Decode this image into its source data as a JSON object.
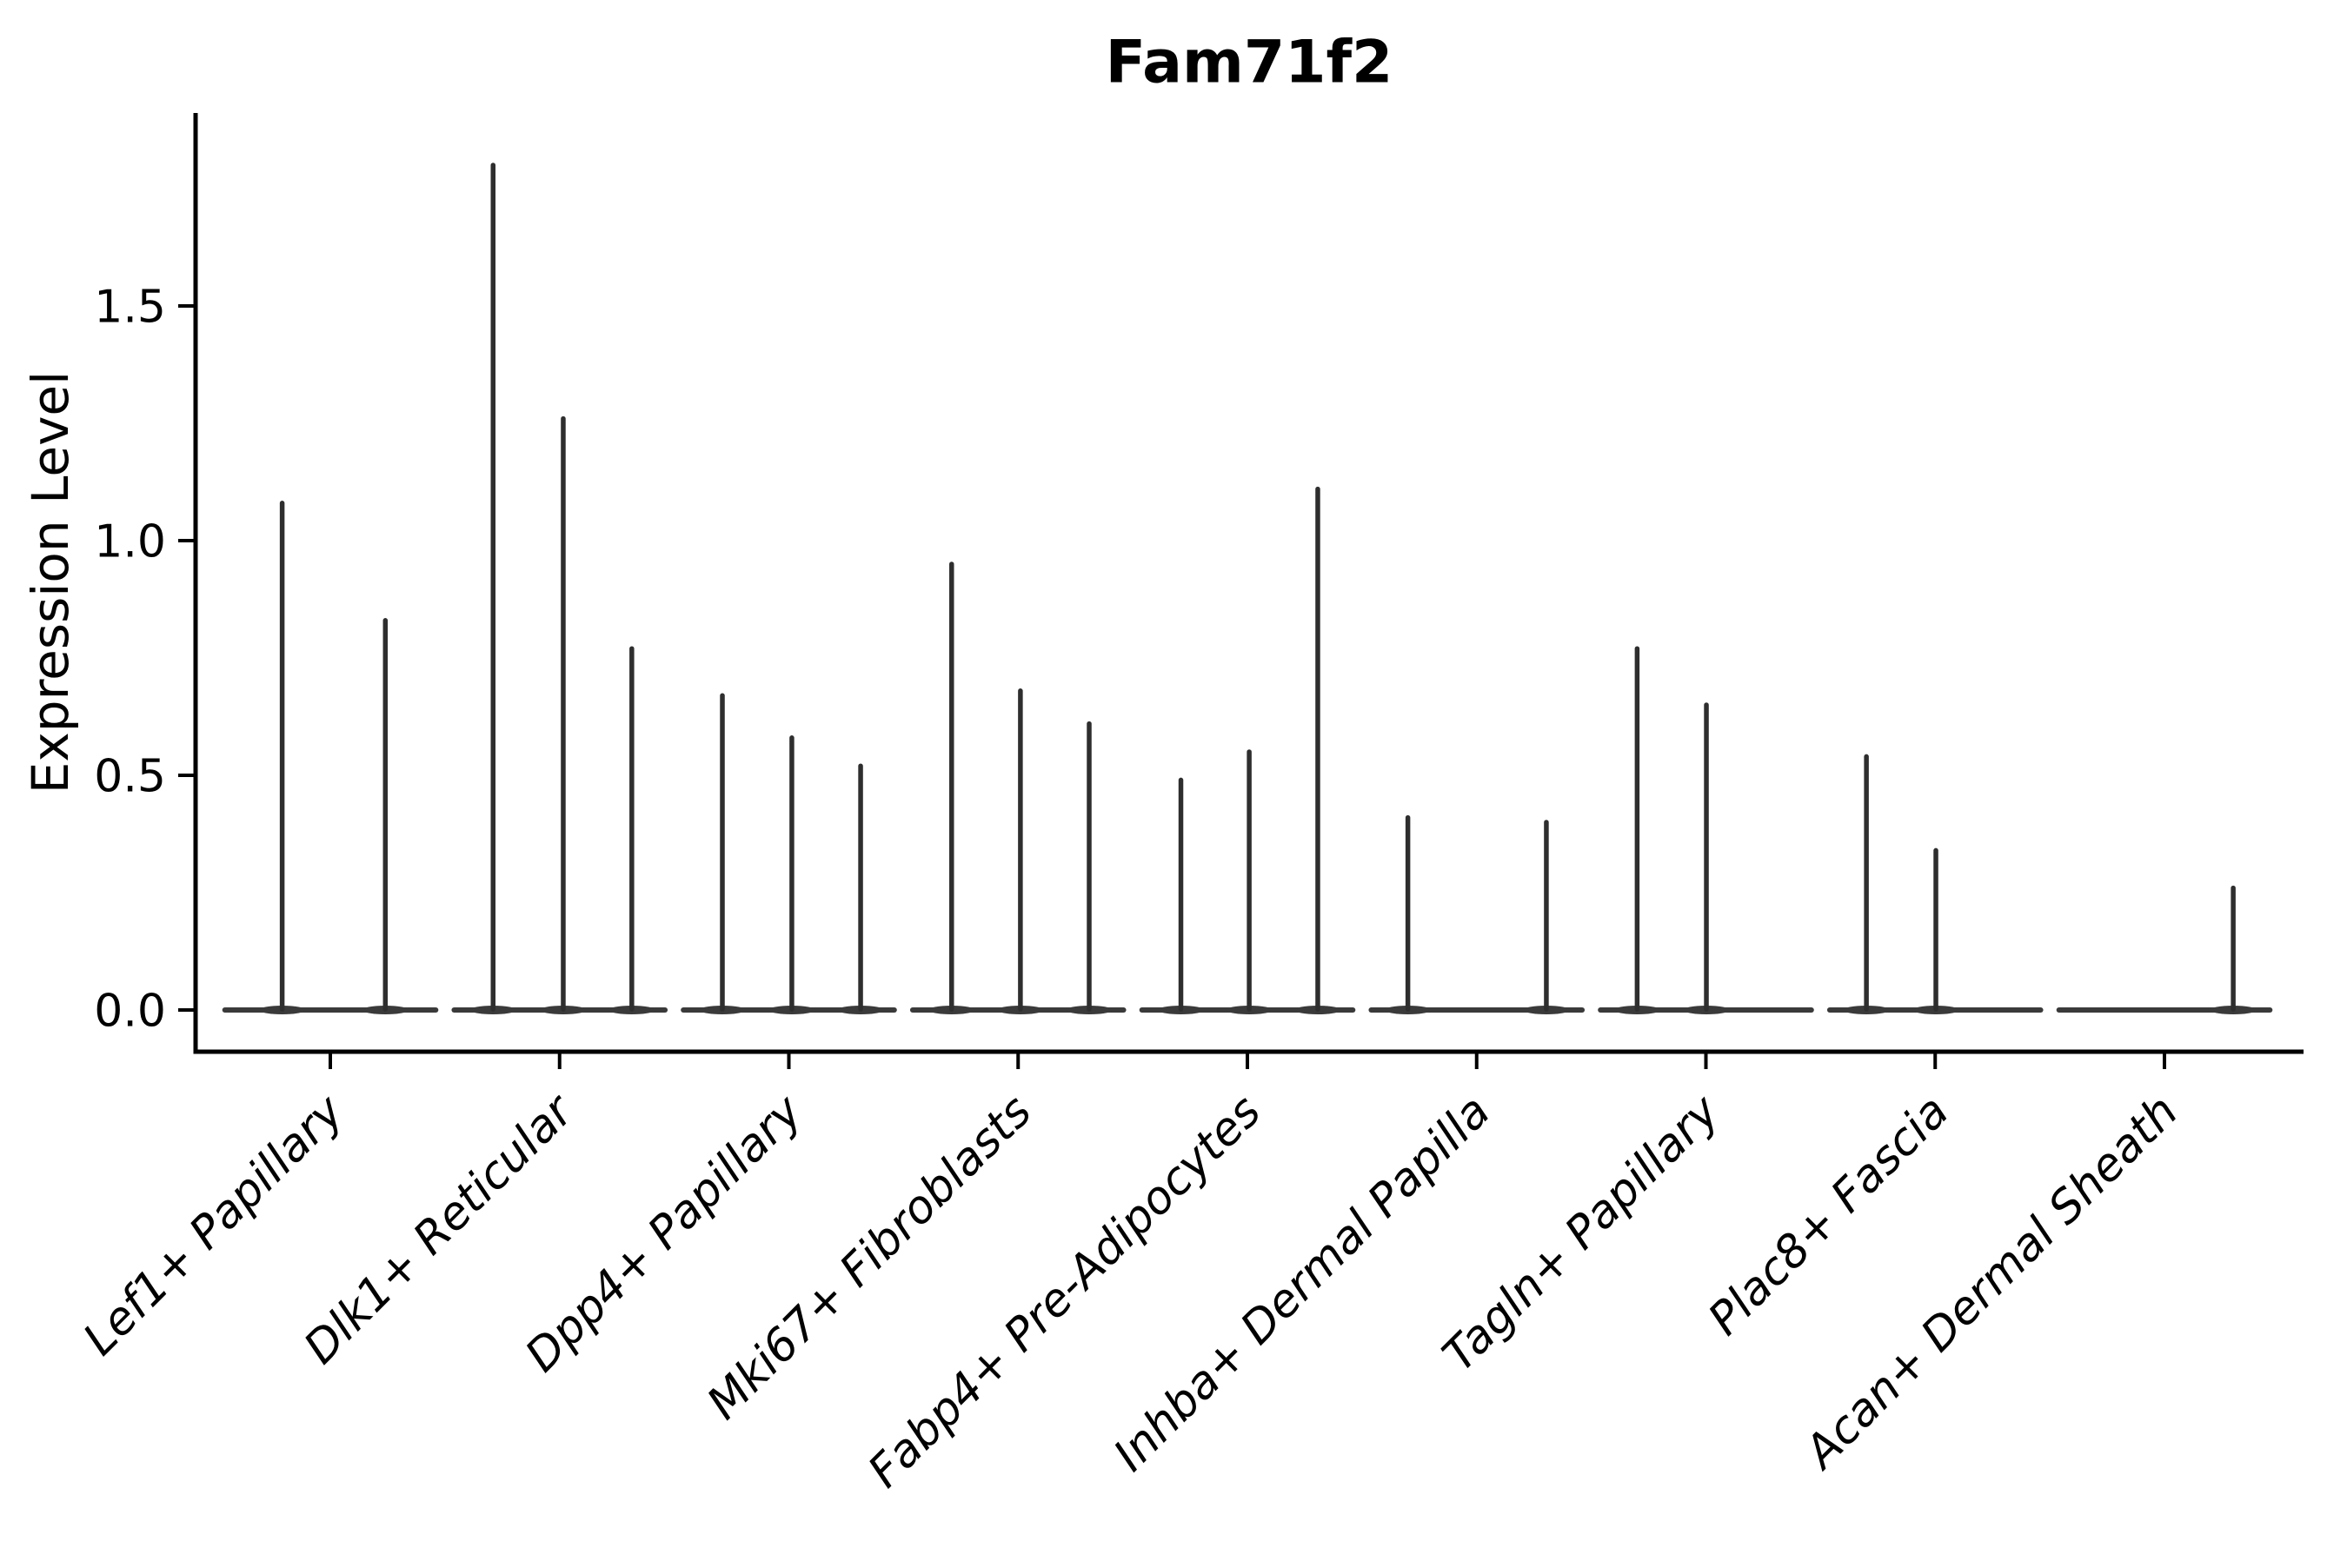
{
  "figure": {
    "background": "#ffffff",
    "axis_color": "#000000",
    "violin_color": "#2e2e2e",
    "baseline_color": "#3a3a3a"
  },
  "chart_data": {
    "type": "violin",
    "title": "Fam71f2",
    "ylabel": "Expression Level",
    "xlabel": "",
    "grid": false,
    "legend": "none",
    "ylim": [
      -0.09,
      1.91
    ],
    "ytick_labels": [
      "0.0",
      "0.5",
      "1.0",
      "1.5"
    ],
    "ytick_values": [
      0.0,
      0.5,
      1.0,
      1.5
    ],
    "categories": [
      "Lef1+ Papillary",
      "Dlk1+ Reticular",
      "Dpp4+ Papillary",
      "Mki67+ Fibroblasts",
      "Fabp4+ Pre-Adipocytes",
      "Inhba+ Dermal Papilla",
      "Tagln+ Papillary",
      "Plac8+ Fascia",
      "Acan+ Dermal Sheath"
    ],
    "series": [
      {
        "category": "Lef1+ Papillary",
        "spikes": [
          {
            "offset": -0.21,
            "value": 1.08
          },
          {
            "offset": 0.24,
            "value": 0.83
          }
        ]
      },
      {
        "category": "Dlk1+ Reticular",
        "spikes": [
          {
            "offset": -0.29,
            "value": 1.8
          },
          {
            "offset": 0.016,
            "value": 1.26
          },
          {
            "offset": 0.315,
            "value": 0.77
          }
        ]
      },
      {
        "category": "Dpp4+ Papillary",
        "spikes": [
          {
            "offset": -0.29,
            "value": 0.67
          },
          {
            "offset": 0.013,
            "value": 0.58
          },
          {
            "offset": 0.313,
            "value": 0.52
          }
        ]
      },
      {
        "category": "Mki67+ Fibroblasts",
        "spikes": [
          {
            "offset": -0.29,
            "value": 0.95
          },
          {
            "offset": 0.01,
            "value": 0.68
          },
          {
            "offset": 0.31,
            "value": 0.61
          }
        ]
      },
      {
        "category": "Fabp4+ Pre-Adipocytes",
        "spikes": [
          {
            "offset": -0.29,
            "value": 0.49
          },
          {
            "offset": 0.008,
            "value": 0.55
          },
          {
            "offset": 0.307,
            "value": 1.11
          }
        ]
      },
      {
        "category": "Inhba+ Dermal Papilla",
        "spikes": [
          {
            "offset": -0.3,
            "value": 0.41
          },
          {
            "offset": 0.304,
            "value": 0.4
          }
        ]
      },
      {
        "category": "Tagln+ Papillary",
        "spikes": [
          {
            "offset": -0.3,
            "value": 0.77
          },
          {
            "offset": 0.002,
            "value": 0.65
          }
        ]
      },
      {
        "category": "Plac8+ Fascia",
        "spikes": [
          {
            "offset": -0.3,
            "value": 0.54
          },
          {
            "offset": 0.003,
            "value": 0.34
          }
        ]
      },
      {
        "category": "Acan+ Dermal Sheath",
        "spikes": [
          {
            "offset": 0.3,
            "value": 0.26
          }
        ]
      }
    ],
    "violin_baseline_halfwidth_frac": 0.46
  }
}
